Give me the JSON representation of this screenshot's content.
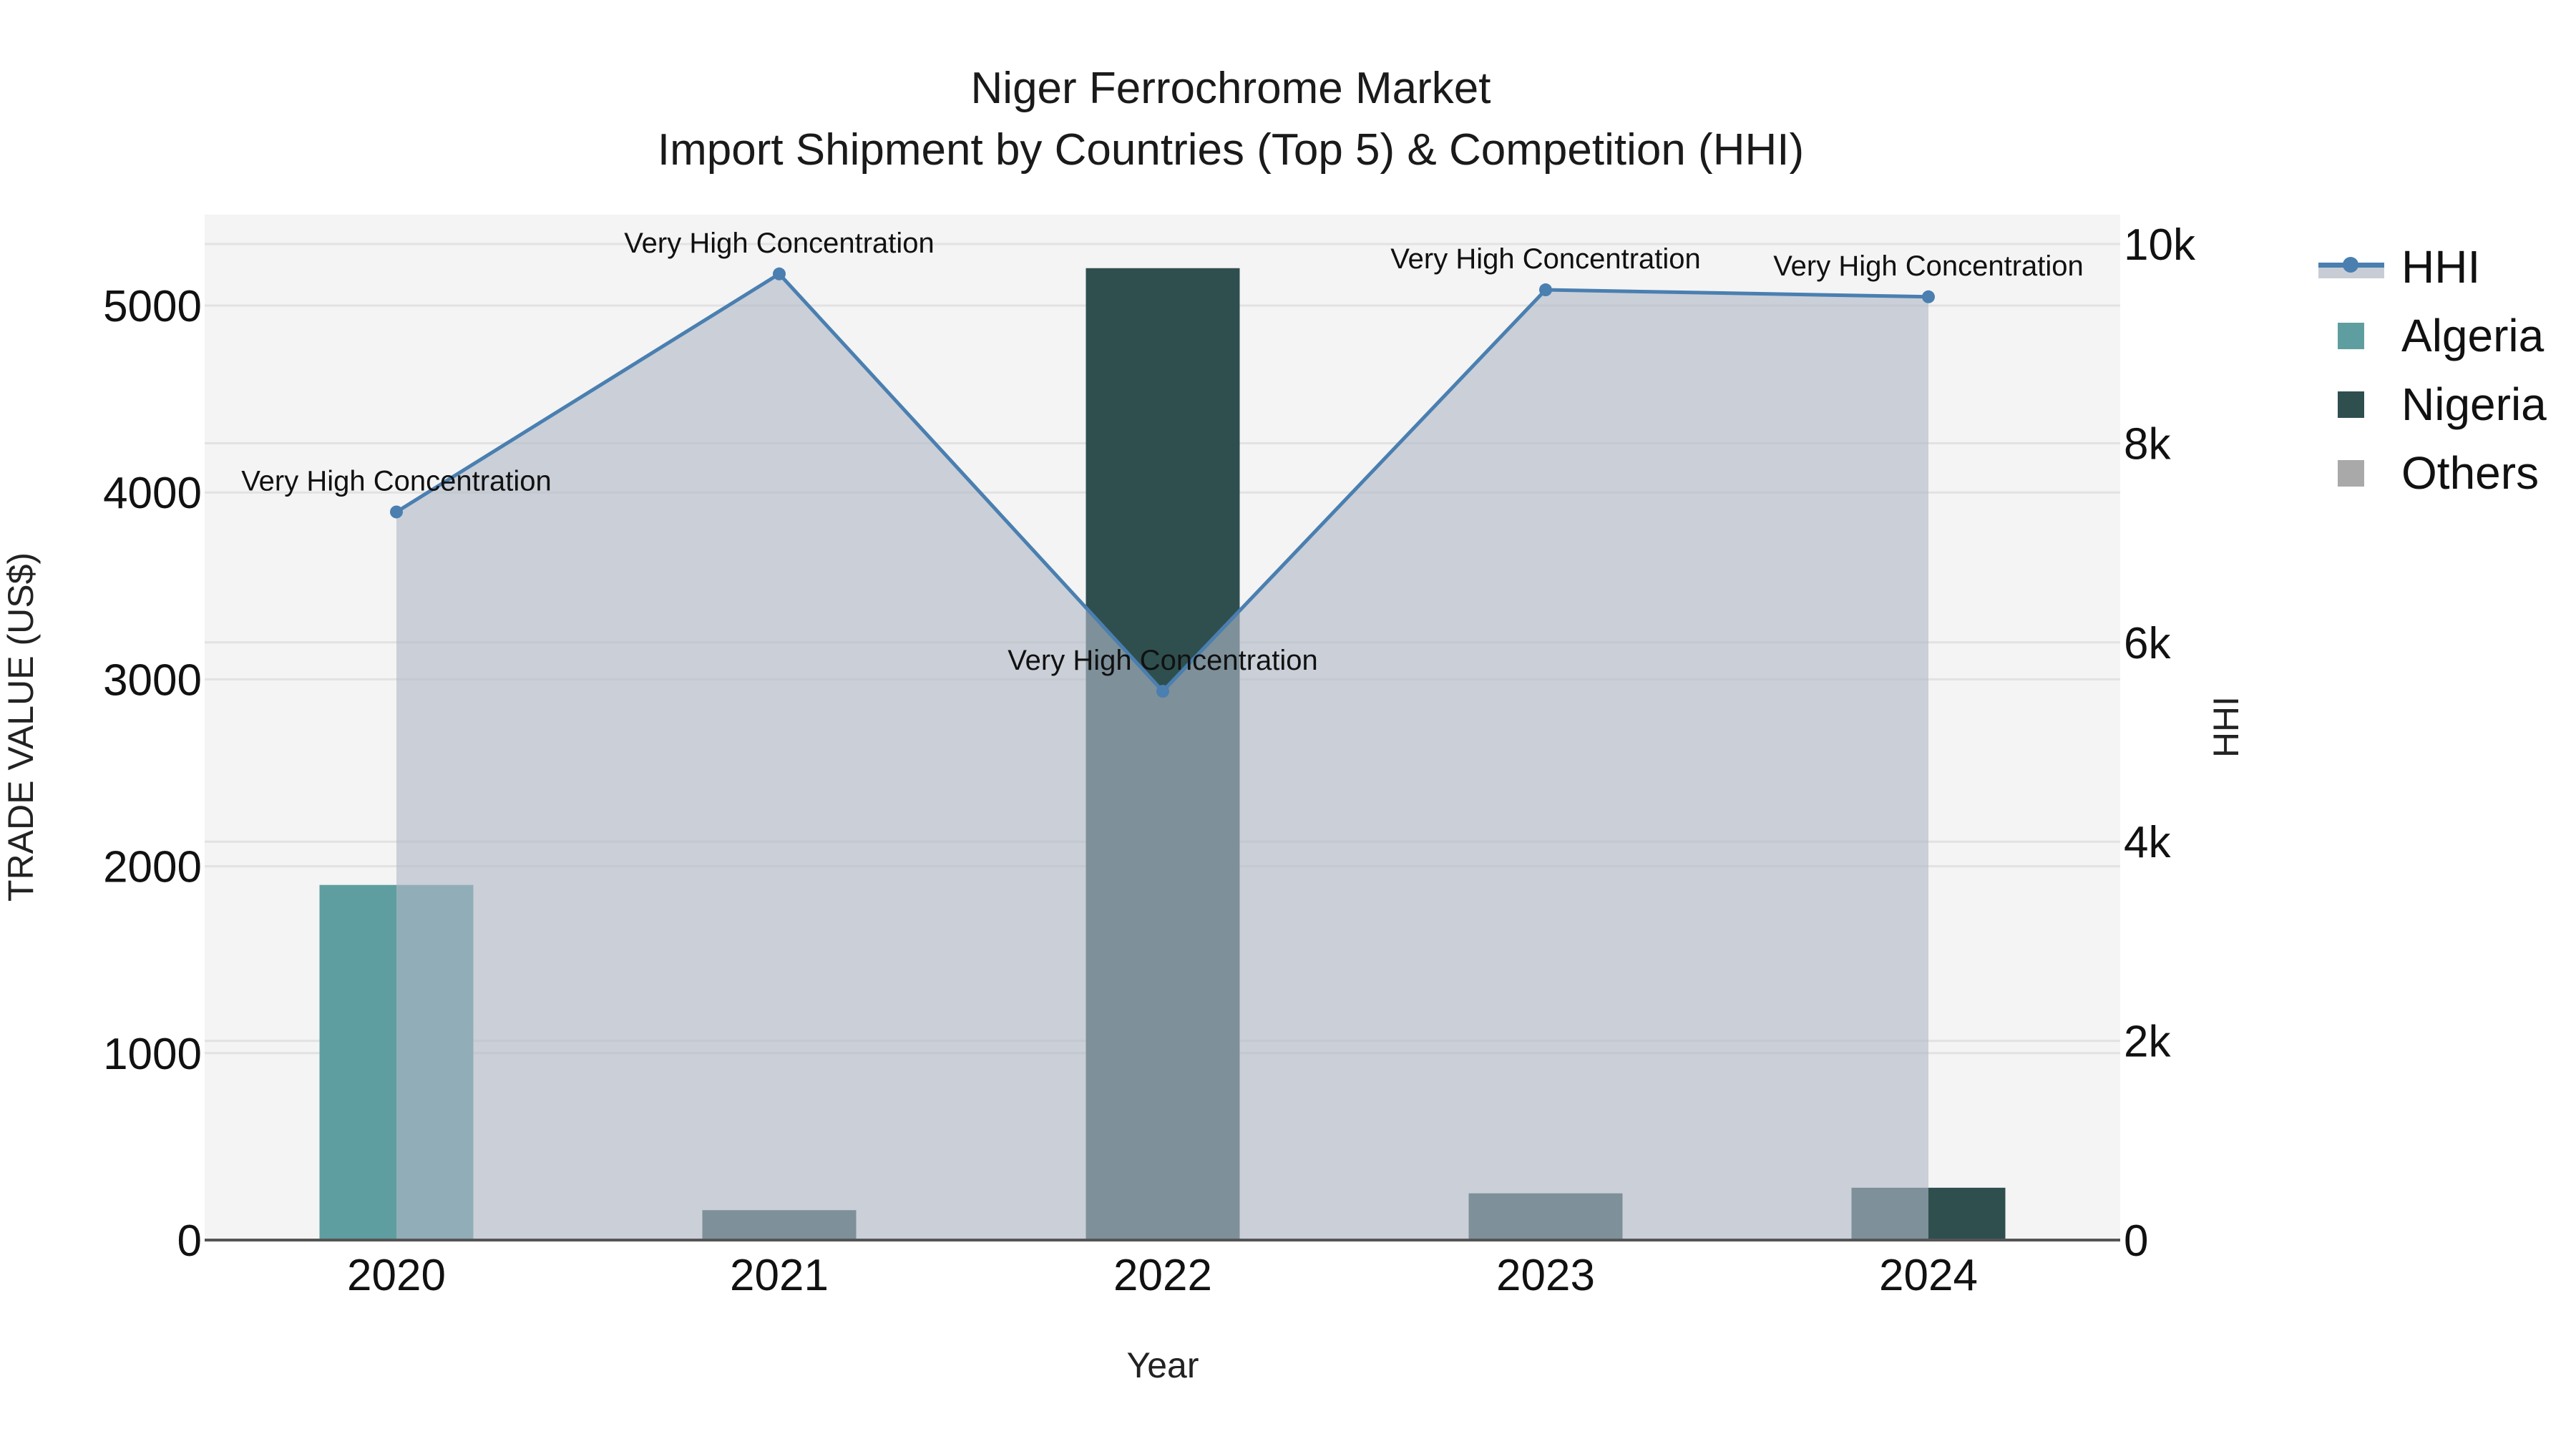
{
  "title": {
    "line1": "Niger Ferrochrome Market",
    "line2": "Import Shipment by Countries (Top 5) & Competition (HHI)"
  },
  "colors": {
    "plot_bg": "#f4f4f4",
    "grid": "#e2e2e2",
    "hhi_line": "#4a7fb0",
    "hhi_fill": "#c8cdd5",
    "Algeria": "#5f9ea0",
    "Nigeria": "#2f4f4f",
    "Others": "#a9a9a9"
  },
  "legend": {
    "items": [
      {
        "label": "HHI",
        "type": "line"
      },
      {
        "label": "Algeria",
        "type": "box",
        "color": "#5f9ea0"
      },
      {
        "label": "Nigeria",
        "type": "box",
        "color": "#2f4f4f"
      },
      {
        "label": "Others",
        "type": "box",
        "color": "#a9a9a9"
      }
    ]
  },
  "chart_data": {
    "type": "bar",
    "title": "Niger Ferrochrome Market — Import Shipment by Countries (Top 5) & Competition (HHI)",
    "xlabel": "Year",
    "ylabel": "TRADE VALUE (US$)",
    "y2label": "HHI",
    "categories": [
      "2020",
      "2021",
      "2022",
      "2023",
      "2024"
    ],
    "series": [
      {
        "name": "Algeria",
        "type": "bar",
        "axis": "y",
        "values": [
          1900,
          0,
          0,
          0,
          0
        ]
      },
      {
        "name": "Nigeria",
        "type": "bar",
        "axis": "y",
        "values": [
          0,
          160,
          5200,
          250,
          280
        ]
      },
      {
        "name": "Others",
        "type": "bar",
        "axis": "y",
        "values": [
          0,
          0,
          0,
          0,
          0
        ]
      },
      {
        "name": "HHI",
        "type": "line+area",
        "axis": "y2",
        "values": [
          7310,
          9700,
          5510,
          9540,
          9470
        ],
        "annotations": [
          "Very High Concentration",
          "Very High Concentration",
          "Very High Concentration",
          "Very High Concentration",
          "Very High Concentration"
        ]
      }
    ],
    "yticks": [
      0,
      1000,
      2000,
      3000,
      4000,
      5000
    ],
    "y2ticks": [
      0,
      2000,
      4000,
      6000,
      8000,
      10000
    ],
    "y2tick_labels": [
      "0",
      "2k",
      "4k",
      "6k",
      "8k",
      "10k"
    ],
    "ylim": [
      0,
      5470
    ],
    "y2lim": [
      0,
      10280
    ],
    "grid": true,
    "legend_position": "right"
  }
}
